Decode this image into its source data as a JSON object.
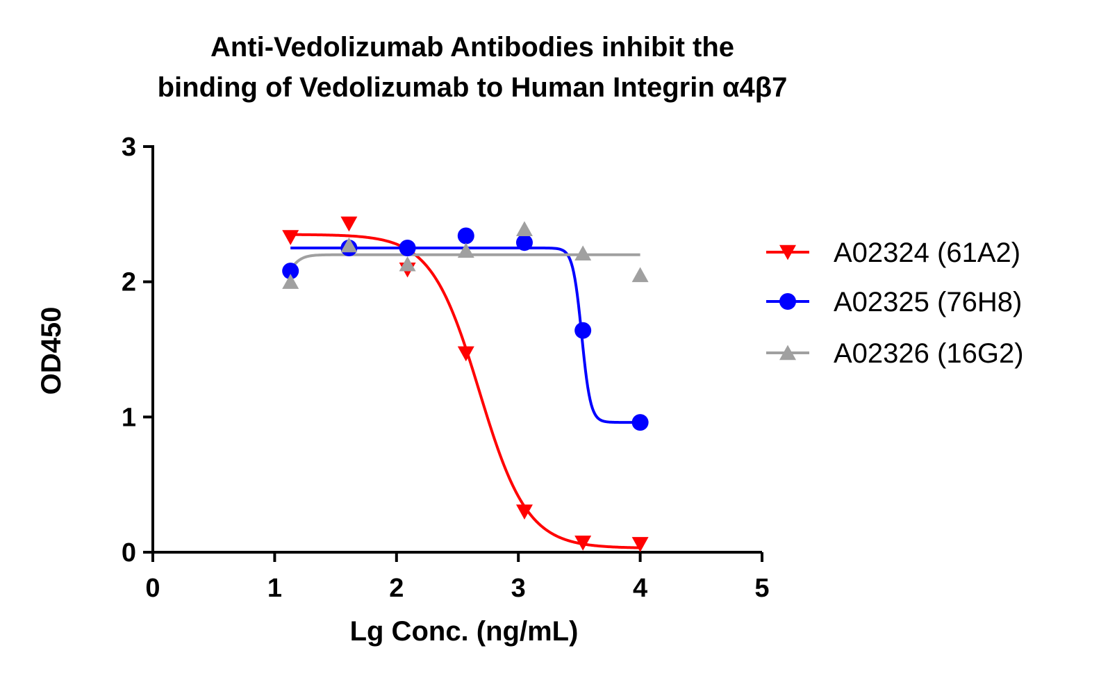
{
  "chart_data": {
    "type": "scatter",
    "title_lines": [
      "Anti-Vedolizumab Antibodies inhibit the",
      "binding of Vedolizumab to Human Integrin α4β7"
    ],
    "xlabel": "Lg Conc. (ng/mL)",
    "ylabel": "OD450",
    "xlim": [
      0,
      5
    ],
    "ylim": [
      0,
      3
    ],
    "xticks": [
      "0",
      "1",
      "2",
      "3",
      "4",
      "5"
    ],
    "yticks": [
      "0",
      "1",
      "2",
      "3"
    ],
    "grid": false,
    "legend_position": "right",
    "series": [
      {
        "name": "A02324 (61A2)",
        "color": "#ff0000",
        "marker": "triangle-down",
        "x": [
          1.13,
          1.61,
          2.09,
          2.57,
          3.05,
          3.53,
          4.0
        ],
        "y": [
          2.33,
          2.43,
          2.09,
          1.47,
          0.3,
          0.07,
          0.06
        ],
        "fit": {
          "top": 2.35,
          "bottom": 0.03,
          "logEC50": 2.68,
          "hill": -2.2
        }
      },
      {
        "name": "A02325 (76H8)",
        "color": "#0000ff",
        "marker": "circle",
        "x": [
          1.13,
          1.61,
          2.09,
          2.57,
          3.05,
          3.53,
          4.0
        ],
        "y": [
          2.08,
          2.25,
          2.25,
          2.34,
          2.29,
          1.64,
          0.96
        ],
        "fit": {
          "top": 2.25,
          "bottom": 0.96,
          "logEC50": 3.52,
          "hill": -12
        }
      },
      {
        "name": "A02326 (16G2)",
        "color": "#a0a0a0",
        "marker": "triangle-up",
        "x": [
          1.13,
          1.61,
          2.09,
          2.57,
          3.05,
          3.53,
          4.0
        ],
        "y": [
          2.0,
          2.27,
          2.13,
          2.23,
          2.39,
          2.21,
          2.05
        ],
        "fit": {
          "top": 2.2,
          "bottom": 1.9,
          "logEC50": 1.1,
          "hill": 8
        }
      }
    ]
  }
}
